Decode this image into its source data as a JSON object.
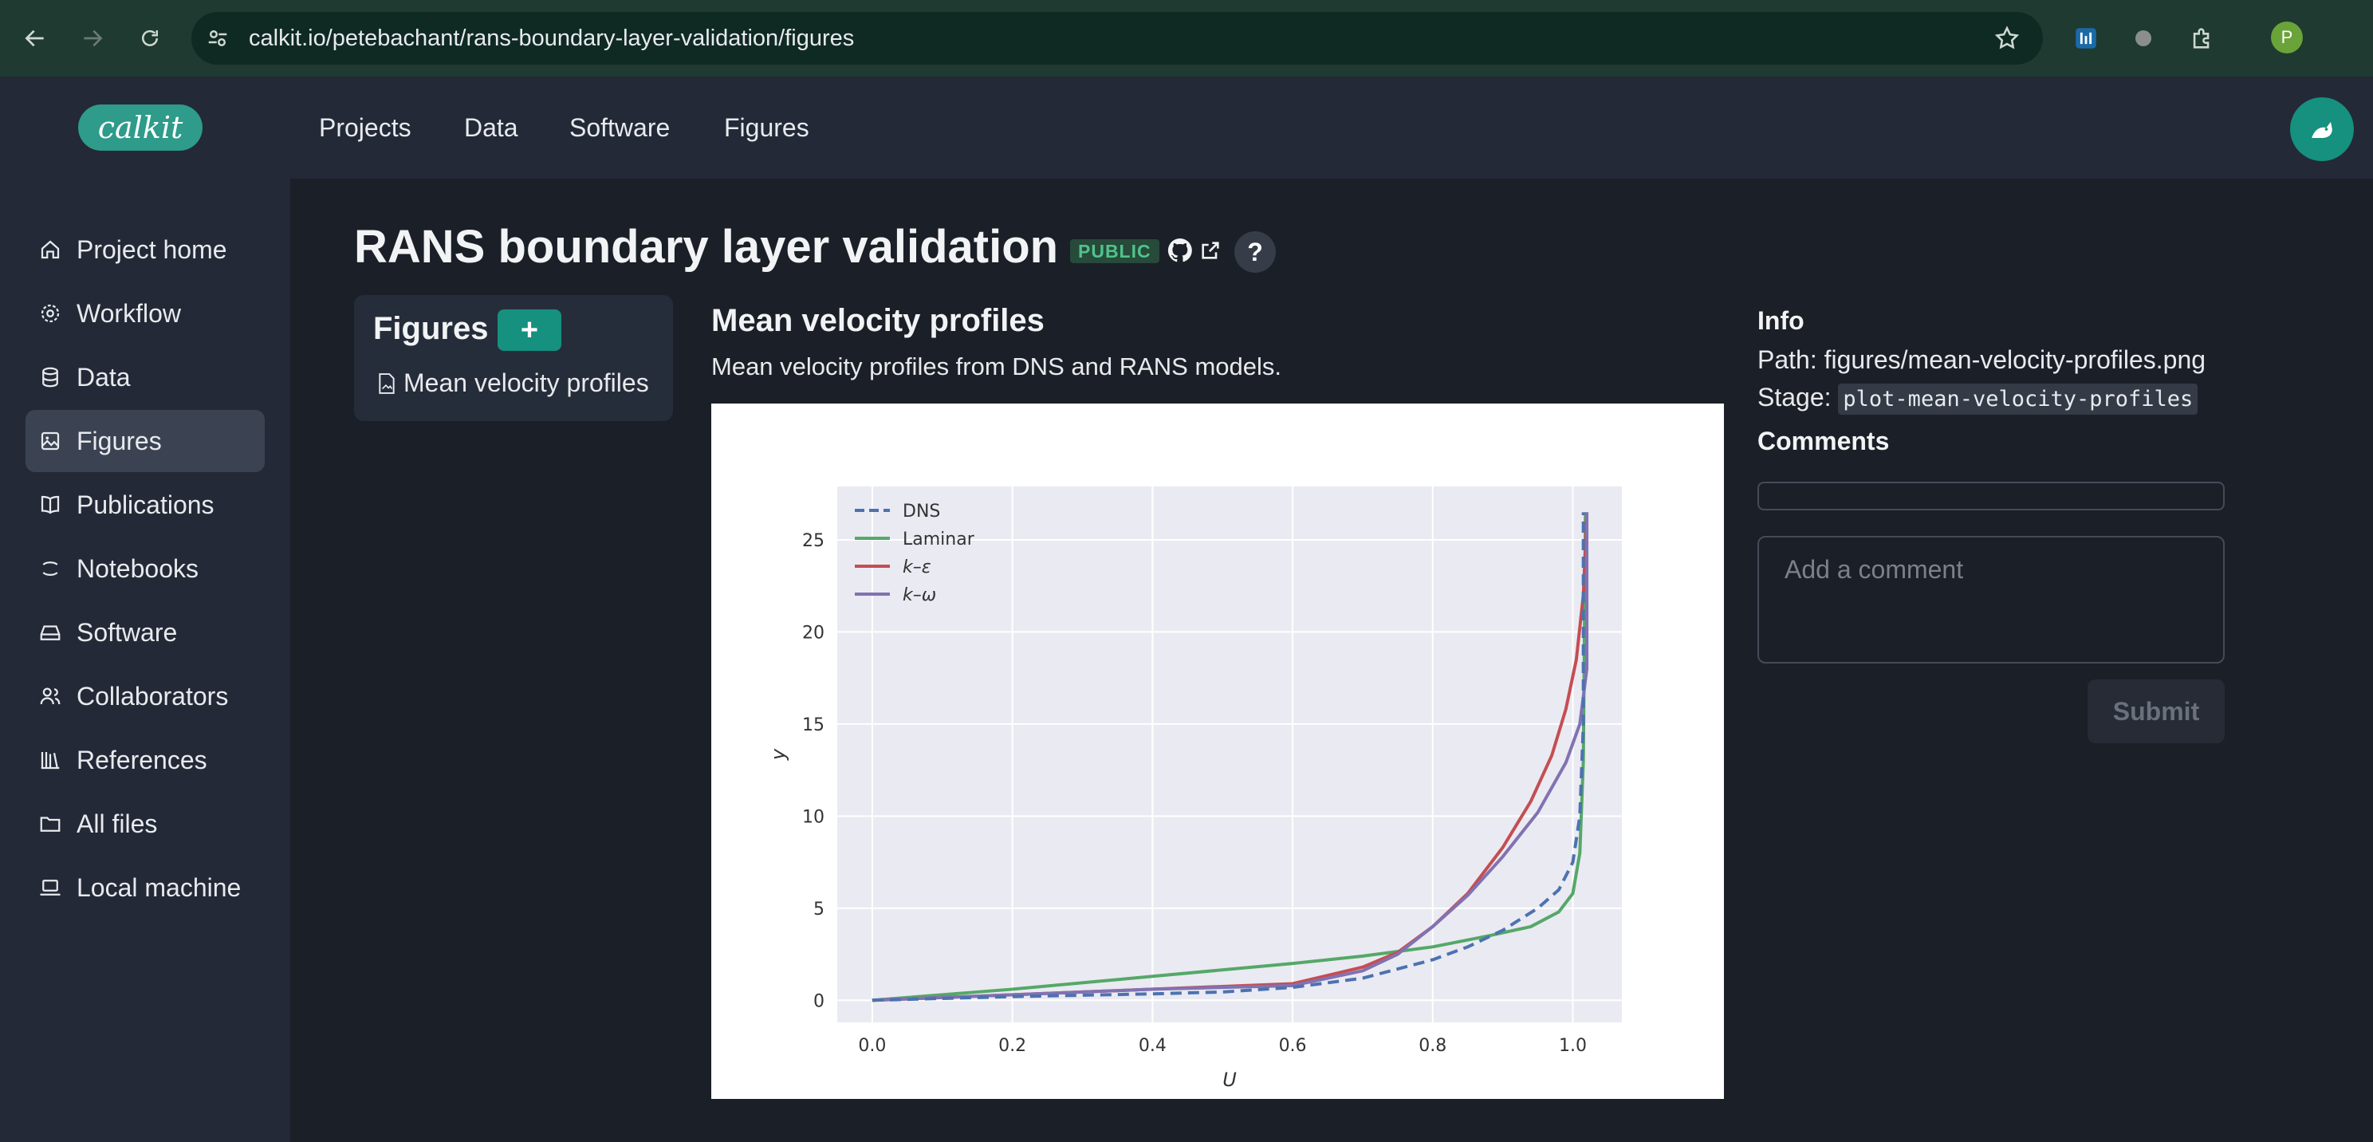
{
  "browser": {
    "url": "calkit.io/petebachant/rans-boundary-layer-validation/figures",
    "profile_initial": "P"
  },
  "header": {
    "logo_text": "calkit",
    "nav": [
      "Projects",
      "Data",
      "Software",
      "Figures"
    ]
  },
  "sidebar": {
    "items": [
      {
        "label": "Project home",
        "icon": "home-icon"
      },
      {
        "label": "Workflow",
        "icon": "gear-icon"
      },
      {
        "label": "Data",
        "icon": "database-icon"
      },
      {
        "label": "Figures",
        "icon": "image-icon",
        "active": true
      },
      {
        "label": "Publications",
        "icon": "book-icon"
      },
      {
        "label": "Notebooks",
        "icon": "notebook-icon"
      },
      {
        "label": "Software",
        "icon": "drive-icon"
      },
      {
        "label": "Collaborators",
        "icon": "users-icon"
      },
      {
        "label": "References",
        "icon": "library-icon"
      },
      {
        "label": "All files",
        "icon": "folder-icon"
      },
      {
        "label": "Local machine",
        "icon": "laptop-icon"
      }
    ]
  },
  "project": {
    "title": "RANS boundary layer validation",
    "visibility": "PUBLIC",
    "help": "?"
  },
  "figures_panel": {
    "heading": "Figures",
    "add_label": "+",
    "items": [
      "Mean velocity profiles"
    ]
  },
  "figure": {
    "title": "Mean velocity profiles",
    "description": "Mean velocity profiles from DNS and RANS models."
  },
  "info": {
    "heading": "Info",
    "path_label": "Path:",
    "path": "figures/mean-velocity-profiles.png",
    "stage_label": "Stage:",
    "stage": "plot-mean-velocity-profiles",
    "comments_heading": "Comments",
    "comment_placeholder": "Add a comment",
    "submit_label": "Submit"
  },
  "colors": {
    "accent": "#16907f",
    "dns": "#4c72b0",
    "laminar": "#55a868",
    "k_epsilon": "#c44e52",
    "k_omega": "#8172b2",
    "plot_bg": "#eaeaf2"
  },
  "chart_data": {
    "type": "line",
    "xlabel": "U",
    "ylabel": "y",
    "xlim": [
      -0.05,
      1.07
    ],
    "ylim": [
      -1.2,
      27.9
    ],
    "xticks": [
      "0.0",
      "0.2",
      "0.4",
      "0.6",
      "0.8",
      "1.0"
    ],
    "yticks": [
      "0",
      "5",
      "10",
      "15",
      "20",
      "25"
    ],
    "grid": true,
    "legend": "top-left",
    "series": [
      {
        "name": "DNS",
        "style": "dashed",
        "x": [
          0.0,
          0.2,
          0.4,
          0.5,
          0.6,
          0.7,
          0.8,
          0.85,
          0.9,
          0.95,
          0.98,
          1.0,
          1.01,
          1.015,
          1.015
        ],
        "y": [
          0.0,
          0.2,
          0.35,
          0.45,
          0.7,
          1.2,
          2.2,
          2.9,
          3.8,
          5.0,
          6.0,
          7.5,
          10.0,
          15.0,
          26.5
        ]
      },
      {
        "name": "Laminar",
        "style": "solid",
        "x": [
          0.0,
          0.2,
          0.4,
          0.6,
          0.7,
          0.8,
          0.88,
          0.94,
          0.98,
          1.0,
          1.01,
          1.015,
          1.018
        ],
        "y": [
          0.0,
          0.6,
          1.3,
          2.0,
          2.4,
          2.9,
          3.5,
          4.0,
          4.8,
          5.8,
          8.0,
          13.0,
          26.5
        ]
      },
      {
        "name": "k–ε",
        "style": "solid",
        "x": [
          0.0,
          0.2,
          0.4,
          0.6,
          0.7,
          0.75,
          0.8,
          0.85,
          0.9,
          0.94,
          0.97,
          0.99,
          1.005,
          1.015,
          1.02
        ],
        "y": [
          0.0,
          0.3,
          0.6,
          0.9,
          1.8,
          2.6,
          4.0,
          5.8,
          8.3,
          10.8,
          13.3,
          15.8,
          18.5,
          22.0,
          26.5
        ]
      },
      {
        "name": "k–ω",
        "style": "solid",
        "x": [
          0.0,
          0.2,
          0.4,
          0.6,
          0.7,
          0.75,
          0.8,
          0.85,
          0.9,
          0.95,
          0.99,
          1.01,
          1.02,
          1.02
        ],
        "y": [
          0.0,
          0.3,
          0.6,
          0.8,
          1.6,
          2.5,
          4.0,
          5.7,
          7.8,
          10.2,
          12.9,
          15.0,
          18.0,
          26.5
        ]
      }
    ]
  }
}
